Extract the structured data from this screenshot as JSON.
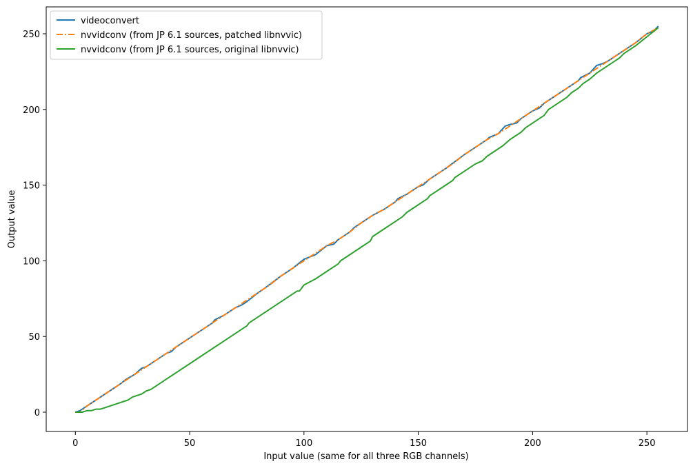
{
  "chart_data": {
    "type": "line",
    "title": "",
    "xlabel": "Input value (same for all three RGB channels)",
    "ylabel": "Output value",
    "xlim": [
      -12.75,
      267.75
    ],
    "ylim": [
      -12.75,
      267.75
    ],
    "xticks": [
      0,
      50,
      100,
      150,
      200,
      250
    ],
    "yticks": [
      0,
      50,
      100,
      150,
      200,
      250
    ],
    "grid": false,
    "legend_position": "upper-left",
    "series": [
      {
        "name": "videoconvert",
        "color": "#1f77b4",
        "style": "solid",
        "points": [
          [
            0,
            0
          ],
          [
            2,
            1
          ],
          [
            6,
            5
          ],
          [
            10,
            9
          ],
          [
            15,
            14
          ],
          [
            20,
            19
          ],
          [
            22,
            21.5
          ],
          [
            26,
            25
          ],
          [
            29,
            29
          ],
          [
            31,
            30
          ],
          [
            33,
            32
          ],
          [
            35,
            34
          ],
          [
            40,
            39
          ],
          [
            42,
            40
          ],
          [
            44,
            43
          ],
          [
            50,
            49
          ],
          [
            55,
            54
          ],
          [
            60,
            59
          ],
          [
            61,
            61
          ],
          [
            65,
            64
          ],
          [
            70,
            69
          ],
          [
            73,
            71
          ],
          [
            75,
            73
          ],
          [
            80,
            79
          ],
          [
            82,
            81
          ],
          [
            90,
            90
          ],
          [
            95,
            95
          ],
          [
            100,
            101
          ],
          [
            105,
            104
          ],
          [
            110,
            110
          ],
          [
            113,
            111
          ],
          [
            115,
            114
          ],
          [
            120,
            119
          ],
          [
            122,
            122
          ],
          [
            130,
            130
          ],
          [
            135,
            134
          ],
          [
            140,
            139
          ],
          [
            141,
            141
          ],
          [
            145,
            144
          ],
          [
            150,
            149
          ],
          [
            152,
            150
          ],
          [
            155,
            154
          ],
          [
            160,
            159
          ],
          [
            162,
            161
          ],
          [
            170,
            170
          ],
          [
            175,
            175
          ],
          [
            180,
            180
          ],
          [
            181,
            181.5
          ],
          [
            185,
            184
          ],
          [
            188,
            189
          ],
          [
            190,
            190
          ],
          [
            193,
            191
          ],
          [
            195,
            194
          ],
          [
            200,
            199
          ],
          [
            203,
            201
          ],
          [
            205,
            204
          ],
          [
            210,
            209
          ],
          [
            215,
            214
          ],
          [
            220,
            219
          ],
          [
            221,
            221
          ],
          [
            225,
            224
          ],
          [
            228,
            229
          ],
          [
            231,
            230.5
          ],
          [
            233,
            232
          ],
          [
            235,
            234
          ],
          [
            240,
            239
          ],
          [
            245,
            244
          ],
          [
            250,
            250
          ],
          [
            253,
            252
          ],
          [
            255,
            255
          ]
        ]
      },
      {
        "name": "nvvidconv (from JP 6.1 sources, patched libnvvic)",
        "color": "#ff7f0e",
        "style": "dashdot",
        "points": [
          [
            0,
            0
          ],
          [
            2,
            0
          ],
          [
            5,
            4
          ],
          [
            10,
            9
          ],
          [
            15,
            14
          ],
          [
            20,
            19
          ],
          [
            22,
            21
          ],
          [
            25,
            24
          ],
          [
            30,
            29
          ],
          [
            35,
            34
          ],
          [
            40,
            39
          ],
          [
            45,
            44
          ],
          [
            50,
            49
          ],
          [
            55,
            54
          ],
          [
            60,
            59
          ],
          [
            65,
            64
          ],
          [
            70,
            69
          ],
          [
            75,
            74
          ],
          [
            80,
            79
          ],
          [
            85,
            84
          ],
          [
            90,
            90
          ],
          [
            95,
            95
          ],
          [
            100,
            100
          ],
          [
            105,
            105
          ],
          [
            110,
            110
          ],
          [
            115,
            114
          ],
          [
            120,
            119
          ],
          [
            125,
            125
          ],
          [
            130,
            130
          ],
          [
            135,
            134
          ],
          [
            140,
            139
          ],
          [
            145,
            144
          ],
          [
            150,
            149
          ],
          [
            155,
            154
          ],
          [
            160,
            159
          ],
          [
            165,
            164
          ],
          [
            170,
            170
          ],
          [
            175,
            175
          ],
          [
            180,
            180
          ],
          [
            185,
            184
          ],
          [
            190,
            189
          ],
          [
            195,
            194
          ],
          [
            200,
            199
          ],
          [
            205,
            204
          ],
          [
            210,
            209
          ],
          [
            215,
            214
          ],
          [
            220,
            219
          ],
          [
            225,
            224
          ],
          [
            230,
            229
          ],
          [
            235,
            234
          ],
          [
            240,
            239
          ],
          [
            245,
            244
          ],
          [
            250,
            250
          ],
          [
            255,
            254
          ]
        ]
      },
      {
        "name": "nvvidconv (from JP 6.1 sources, original libnvvic)",
        "color": "#2ca02c",
        "style": "solid",
        "points": [
          [
            0,
            0
          ],
          [
            3,
            0
          ],
          [
            5,
            1
          ],
          [
            7,
            1
          ],
          [
            9,
            2
          ],
          [
            11,
            2
          ],
          [
            13,
            3
          ],
          [
            15,
            4
          ],
          [
            17,
            5
          ],
          [
            19,
            6
          ],
          [
            21,
            7
          ],
          [
            23,
            8
          ],
          [
            25,
            10
          ],
          [
            27,
            11
          ],
          [
            29,
            12
          ],
          [
            31,
            14
          ],
          [
            33,
            15
          ],
          [
            35,
            17
          ],
          [
            40,
            22
          ],
          [
            45,
            27
          ],
          [
            50,
            32
          ],
          [
            55,
            37
          ],
          [
            60,
            42
          ],
          [
            65,
            47
          ],
          [
            70,
            52
          ],
          [
            75,
            57
          ],
          [
            76,
            59
          ],
          [
            80,
            63
          ],
          [
            85,
            68
          ],
          [
            90,
            73
          ],
          [
            95,
            78
          ],
          [
            97,
            80
          ],
          [
            98,
            80
          ],
          [
            100,
            84
          ],
          [
            105,
            88
          ],
          [
            110,
            93
          ],
          [
            115,
            98
          ],
          [
            116,
            100
          ],
          [
            120,
            104
          ],
          [
            125,
            109
          ],
          [
            129,
            113
          ],
          [
            130,
            116
          ],
          [
            135,
            121
          ],
          [
            140,
            126
          ],
          [
            143,
            129
          ],
          [
            145,
            132
          ],
          [
            150,
            137
          ],
          [
            154,
            141
          ],
          [
            155,
            143
          ],
          [
            160,
            148
          ],
          [
            165,
            153
          ],
          [
            166,
            155
          ],
          [
            170,
            159
          ],
          [
            175,
            164
          ],
          [
            178,
            166
          ],
          [
            180,
            169
          ],
          [
            185,
            174
          ],
          [
            187,
            176
          ],
          [
            190,
            180
          ],
          [
            195,
            185
          ],
          [
            197,
            188
          ],
          [
            200,
            191
          ],
          [
            205,
            196
          ],
          [
            207,
            200
          ],
          [
            210,
            203
          ],
          [
            215,
            208
          ],
          [
            217,
            211
          ],
          [
            220,
            214
          ],
          [
            222,
            217
          ],
          [
            225,
            220
          ],
          [
            228,
            224
          ],
          [
            230,
            226
          ],
          [
            232,
            228
          ],
          [
            235,
            231
          ],
          [
            238,
            234
          ],
          [
            240,
            237
          ],
          [
            245,
            242
          ],
          [
            250,
            248
          ],
          [
            255,
            254
          ]
        ]
      }
    ]
  }
}
